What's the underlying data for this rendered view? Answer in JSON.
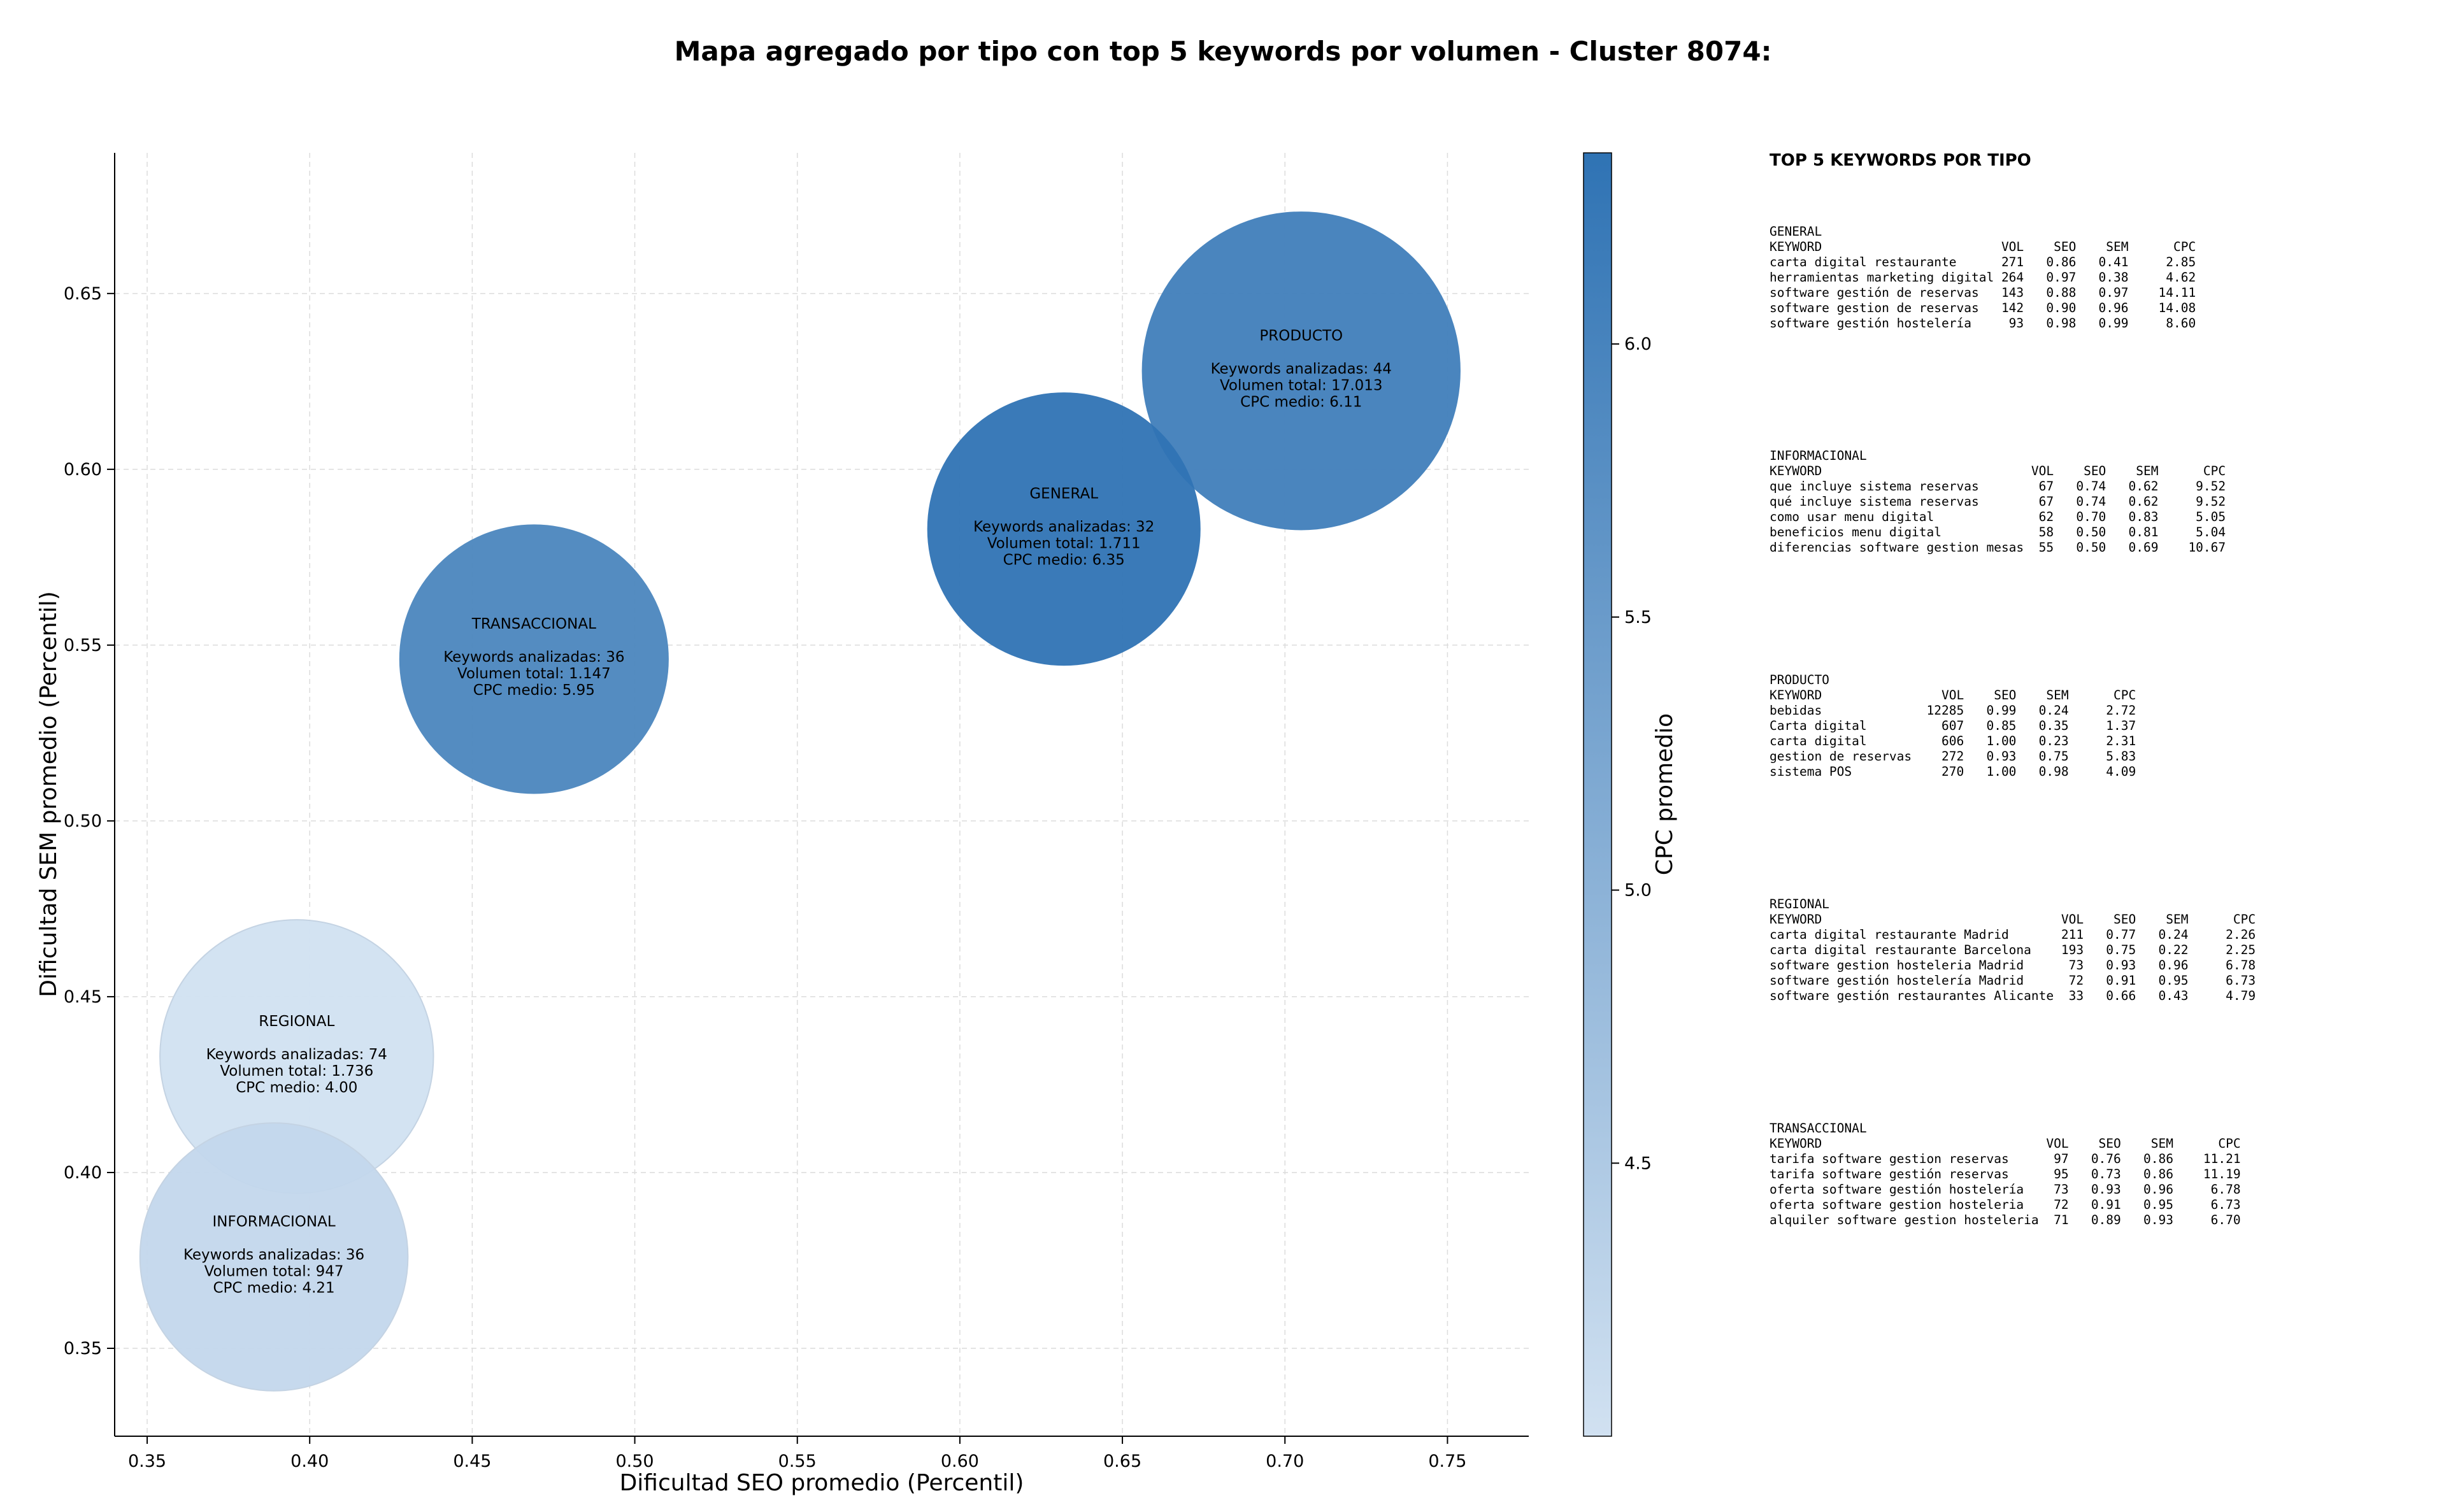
{
  "chart_data": {
    "type": "scatter",
    "title": "Mapa agregado por tipo con top 5 keywords por volumen - Cluster 8074:",
    "xlabel": "Dificultad SEO promedio (Percentil)",
    "ylabel": "Dificultad SEM promedio (Percentil)",
    "xlim": [
      0.34,
      0.775
    ],
    "ylim": [
      0.325,
      0.69
    ],
    "xticks": [
      "0.35",
      "0.40",
      "0.45",
      "0.50",
      "0.55",
      "0.60",
      "0.65",
      "0.70",
      "0.75"
    ],
    "yticks": [
      "0.35",
      "0.40",
      "0.45",
      "0.50",
      "0.55",
      "0.60",
      "0.65"
    ],
    "grid": true,
    "colorbar": {
      "label": "CPC promedio",
      "range": [
        4.0,
        6.35
      ],
      "ticks": [
        "4.5",
        "5.0",
        "5.5",
        "6.0"
      ],
      "color_low": "#d1e1f1",
      "color_high": "#2f73b4"
    },
    "points": [
      {
        "name": "PRODUCTO",
        "x": 0.705,
        "y": 0.628,
        "keywords": 44,
        "volume": 17013,
        "cpc": 6.11,
        "lines": [
          "Keywords analizadas: 44",
          "Volumen total: 17.013",
          "CPC medio: 6.11"
        ]
      },
      {
        "name": "GENERAL",
        "x": 0.632,
        "y": 0.583,
        "keywords": 32,
        "volume": 1711,
        "cpc": 6.35,
        "lines": [
          "Keywords analizadas: 32",
          "Volumen total: 1.711",
          "CPC medio: 6.35"
        ]
      },
      {
        "name": "TRANSACCIONAL",
        "x": 0.469,
        "y": 0.546,
        "keywords": 36,
        "volume": 1147,
        "cpc": 5.95,
        "lines": [
          "Keywords analizadas: 36",
          "Volumen total: 1.147",
          "CPC medio: 5.95"
        ]
      },
      {
        "name": "REGIONAL",
        "x": 0.396,
        "y": 0.433,
        "keywords": 74,
        "volume": 1736,
        "cpc": 4.0,
        "lines": [
          "Keywords analizadas: 74",
          "Volumen total: 1.736",
          "CPC medio: 4.00"
        ]
      },
      {
        "name": "INFORMACIONAL",
        "x": 0.389,
        "y": 0.376,
        "keywords": 36,
        "volume": 947,
        "cpc": 4.21,
        "lines": [
          "Keywords analizadas: 36",
          "Volumen total: 947",
          "CPC medio: 4.21"
        ]
      }
    ]
  },
  "side_panel": {
    "heading": "TOP 5 KEYWORDS POR TIPO",
    "blocks": [
      {
        "title": "GENERAL",
        "lines": [
          "KEYWORD                        VOL    SEO    SEM      CPC",
          "carta digital restaurante      271   0.86   0.41     2.85",
          "herramientas marketing digital 264   0.97   0.38     4.62",
          "software gestión de reservas   143   0.88   0.97    14.11",
          "software gestion de reservas   142   0.90   0.96    14.08",
          "software gestión hostelería     93   0.98   0.99     8.60"
        ]
      },
      {
        "title": "INFORMACIONAL",
        "lines": [
          "KEYWORD                            VOL    SEO    SEM      CPC",
          "que incluye sistema reservas        67   0.74   0.62     9.52",
          "qué incluye sistema reservas        67   0.74   0.62     9.52",
          "como usar menu digital              62   0.70   0.83     5.05",
          "beneficios menu digital             58   0.50   0.81     5.04",
          "diferencias software gestion mesas  55   0.50   0.69    10.67"
        ]
      },
      {
        "title": "PRODUCTO",
        "lines": [
          "KEYWORD                VOL    SEO    SEM      CPC",
          "bebidas              12285   0.99   0.24     2.72",
          "Carta digital          607   0.85   0.35     1.37",
          "carta digital          606   1.00   0.23     2.31",
          "gestion de reservas    272   0.93   0.75     5.83",
          "sistema POS            270   1.00   0.98     4.09"
        ]
      },
      {
        "title": "REGIONAL",
        "lines": [
          "KEYWORD                                VOL    SEO    SEM      CPC",
          "carta digital restaurante Madrid       211   0.77   0.24     2.26",
          "carta digital restaurante Barcelona    193   0.75   0.22     2.25",
          "software gestion hosteleria Madrid      73   0.93   0.96     6.78",
          "software gestión hostelería Madrid      72   0.91   0.95     6.73",
          "software gestión restaurantes Alicante  33   0.66   0.43     4.79"
        ]
      },
      {
        "title": "TRANSACCIONAL",
        "lines": [
          "KEYWORD                              VOL    SEO    SEM      CPC",
          "tarifa software gestion reservas      97   0.76   0.86    11.21",
          "tarifa software gestión reservas      95   0.73   0.86    11.19",
          "oferta software gestión hostelería    73   0.93   0.96     6.78",
          "oferta software gestion hosteleria    72   0.91   0.95     6.73",
          "alquiler software gestion hosteleria  71   0.89   0.93     6.70"
        ]
      }
    ]
  }
}
